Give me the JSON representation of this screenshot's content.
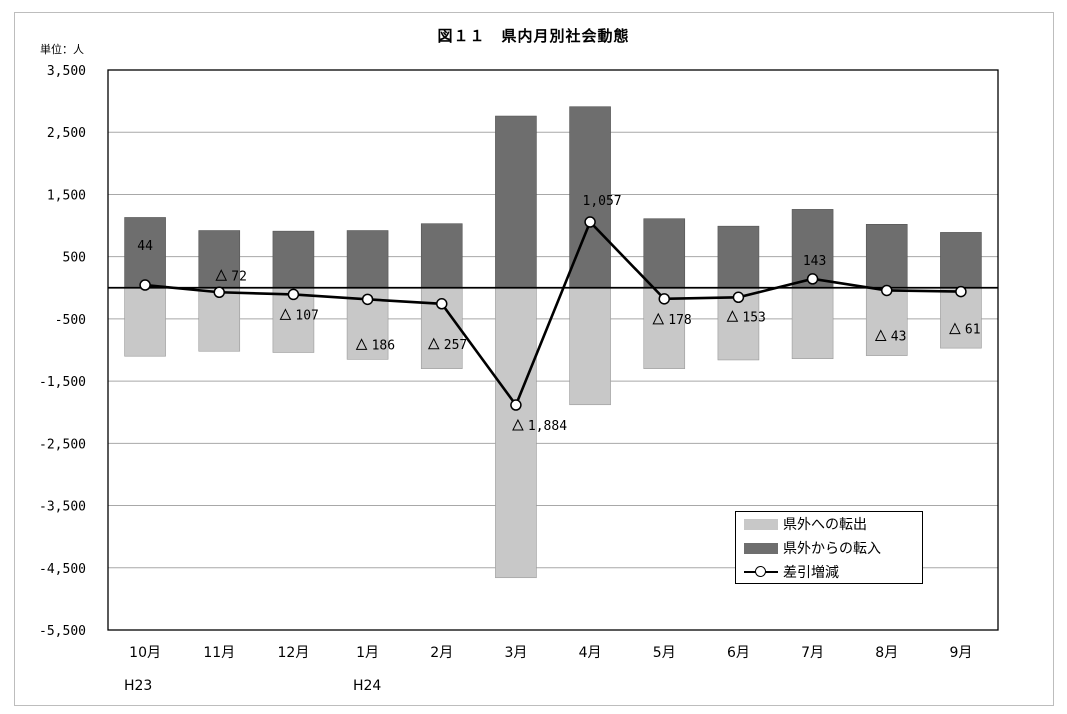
{
  "page": {
    "title": "図１１　県内月別社会動態",
    "unit": "単位：人",
    "eras": [
      "H23",
      "H24"
    ]
  },
  "chart_data": {
    "type": "bar",
    "title": "図１１　県内月別社会動態",
    "categories": [
      "10月",
      "11月",
      "12月",
      "1月",
      "2月",
      "3月",
      "4月",
      "5月",
      "6月",
      "7月",
      "8月",
      "9月"
    ],
    "ylim": [
      -5500,
      3500
    ],
    "yticks": [
      3500,
      2500,
      1500,
      500,
      -500,
      -1500,
      -2500,
      -3500,
      -4500,
      -5500
    ],
    "ytick_labels": [
      "3,500",
      "2,500",
      "1,500",
      "500",
      "-500",
      "-1,500",
      "-2,500",
      "-3,500",
      "-4,500",
      "-5,500"
    ],
    "grid": true,
    "legend_position": "bottom-right",
    "series": [
      {
        "name": "県外への転出",
        "type": "bar",
        "color": "#c8c8c8",
        "values": [
          -1100,
          -1020,
          -1040,
          -1150,
          -1300,
          -4660,
          -1880,
          -1300,
          -1160,
          -1140,
          -1090,
          -970
        ]
      },
      {
        "name": "県外からの転入",
        "type": "bar",
        "color": "#6e6e6e",
        "values": [
          1130,
          920,
          910,
          920,
          1030,
          2760,
          2910,
          1110,
          990,
          1260,
          1020,
          890
        ]
      },
      {
        "name": "差引増減",
        "type": "line",
        "color": "#000000",
        "values": [
          44,
          -72,
          -107,
          -186,
          -257,
          -1884,
          1057,
          -178,
          -153,
          143,
          -43,
          -61
        ],
        "labels": [
          "44",
          "72",
          "107",
          "186",
          "257",
          "1,884",
          "1,057",
          "178",
          "153",
          "143",
          "43",
          "61"
        ],
        "negative": [
          false,
          true,
          true,
          true,
          true,
          true,
          false,
          true,
          true,
          false,
          true,
          true
        ]
      }
    ]
  }
}
